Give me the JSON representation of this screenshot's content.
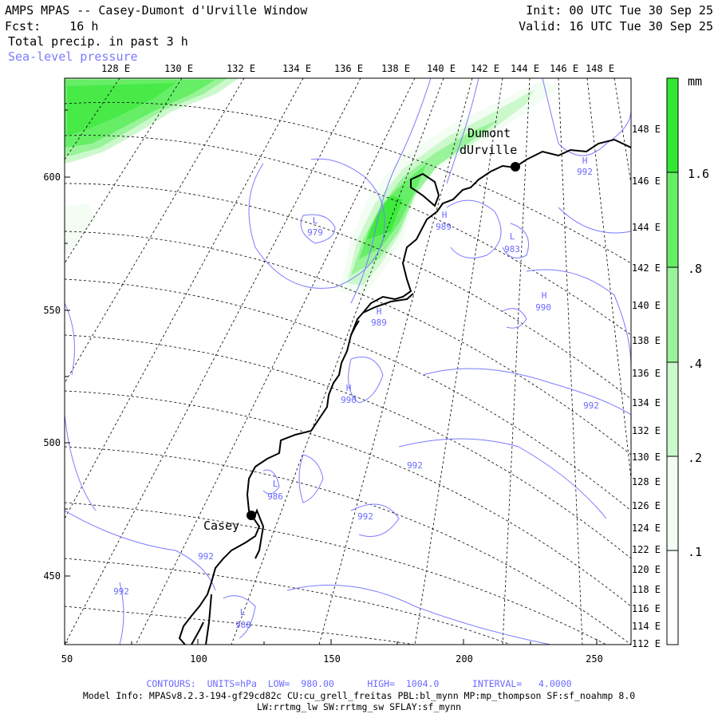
{
  "header": {
    "title": "AMPS MPAS -- Casey-Dumont d'Urville Window",
    "forecast": "Fcst:    16 h",
    "field": "Total precip. in past 3 h",
    "overlay": "Sea-level pressure",
    "init": "Init: 00 UTC Tue 30 Sep 25",
    "valid": "Valid: 16 UTC Tue 30 Sep 25"
  },
  "longitude_labels": [
    "128 E",
    "130 E",
    "132 E",
    "134 E",
    "136 E",
    "138 E",
    "140 E",
    "142 E",
    "144 E",
    "146 E",
    "148 E"
  ],
  "right_labels": [
    "148 E",
    "146 E",
    "144 E",
    "142 E",
    "140 E",
    "138 E",
    "136 E",
    "134 E",
    "132 E",
    "130 E",
    "128 E",
    "126 E",
    "124 E",
    "122 E",
    "120 E",
    "118 E",
    "116 E",
    "114 E",
    "112 E"
  ],
  "y_ticks": [
    "600",
    "550",
    "500",
    "450"
  ],
  "x_ticks": [
    "50",
    "100",
    "150",
    "200",
    "250"
  ],
  "colorbar": {
    "unit": "mm",
    "labels": [
      "1.6",
      ".8",
      ".4",
      ".2",
      ".1"
    ],
    "colors": [
      "#33e833",
      "#66ee66",
      "#99f399",
      "#ccf9cc",
      "#f3fdf3"
    ]
  },
  "stations": [
    {
      "name": "Dumont",
      "name2": "dUrville"
    },
    {
      "name": "Casey"
    }
  ],
  "pressure_labels": [
    {
      "kind": "L",
      "value": "979"
    },
    {
      "kind": "H",
      "value": "989"
    },
    {
      "kind": "H",
      "value": "992"
    },
    {
      "kind": "L",
      "value": "983"
    },
    {
      "kind": "H",
      "value": "990"
    },
    {
      "kind": "H",
      "value": "989"
    },
    {
      "kind": "H",
      "value": "990"
    },
    {
      "kind": "L",
      "value": "986"
    },
    {
      "kind": "L",
      "value": "988"
    },
    {
      "kind": "",
      "value": "992"
    },
    {
      "kind": "",
      "value": "992"
    },
    {
      "kind": "",
      "value": "992"
    },
    {
      "kind": "",
      "value": "992"
    },
    {
      "kind": "",
      "value": "992"
    }
  ],
  "footer": {
    "contours": "CONTOURS:  UNITS=hPa  LOW=  980.00      HIGH=  1004.0      INTERVAL=   4.0000",
    "model1": "Model Info: MPASv8.2.3-194-gf29cd82c CU:cu_grell_freitas PBL:bl_mynn MP:mp_thompson SF:sf_noahmp 8.0",
    "model2": "LW:rrtmg_lw SW:rrtmg_sw SFLAY:sf_mynn"
  }
}
